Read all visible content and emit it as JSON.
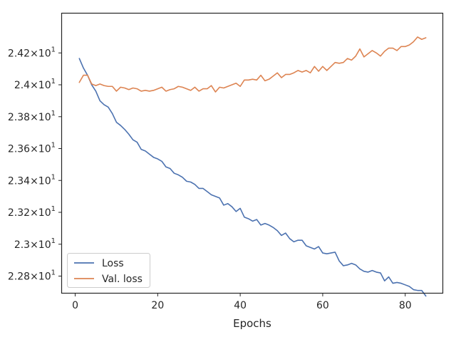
{
  "chart_data": {
    "type": "line",
    "title": "",
    "xlabel": "Epochs",
    "ylabel": "",
    "xlim": [
      -3.2,
      89.2
    ],
    "ylim": [
      22.695,
      24.447
    ],
    "grid": false,
    "legend_position": "bottom-left",
    "x_ticks": [
      0,
      20,
      40,
      60,
      80
    ],
    "x_tick_labels": [
      "0",
      "20",
      "40",
      "60",
      "80"
    ],
    "y_ticks": [
      22.8,
      23.0,
      23.2,
      23.4,
      23.6,
      23.8,
      24.0,
      24.2
    ],
    "y_tick_labels": [
      {
        "mantissa": "2.28",
        "exp": "1"
      },
      {
        "mantissa": "2.3",
        "exp": "1"
      },
      {
        "mantissa": "2.32",
        "exp": "1"
      },
      {
        "mantissa": "2.34",
        "exp": "1"
      },
      {
        "mantissa": "2.36",
        "exp": "1"
      },
      {
        "mantissa": "2.38",
        "exp": "1"
      },
      {
        "mantissa": "2.4",
        "exp": "1"
      },
      {
        "mantissa": "2.42",
        "exp": "1"
      }
    ],
    "series": [
      {
        "name": "Loss",
        "color": "#4c72b0",
        "x": [
          1,
          2,
          3,
          4,
          5,
          6,
          7,
          8,
          9,
          10,
          11,
          12,
          13,
          14,
          15,
          16,
          17,
          18,
          19,
          20,
          21,
          22,
          23,
          24,
          25,
          26,
          27,
          28,
          29,
          30,
          31,
          32,
          33,
          34,
          35,
          36,
          37,
          38,
          39,
          40,
          41,
          42,
          43,
          44,
          45,
          46,
          47,
          48,
          49,
          50,
          51,
          52,
          53,
          54,
          55,
          56,
          57,
          58,
          59,
          60,
          61,
          62,
          63,
          64,
          65,
          66,
          67,
          68,
          69,
          70,
          71,
          72,
          73,
          74,
          75,
          76,
          77,
          78,
          79,
          80,
          81,
          82,
          83,
          84,
          85
        ],
        "values": [
          24.165,
          24.105,
          24.06,
          24.0,
          23.96,
          23.9,
          23.875,
          23.86,
          23.82,
          23.765,
          23.745,
          23.72,
          23.69,
          23.655,
          23.64,
          23.595,
          23.585,
          23.565,
          23.545,
          23.535,
          23.52,
          23.485,
          23.475,
          23.445,
          23.435,
          23.42,
          23.395,
          23.39,
          23.375,
          23.35,
          23.35,
          23.33,
          23.31,
          23.3,
          23.29,
          23.245,
          23.255,
          23.235,
          23.205,
          23.225,
          23.17,
          23.16,
          23.145,
          23.155,
          23.12,
          23.13,
          23.12,
          23.105,
          23.085,
          23.055,
          23.07,
          23.035,
          23.015,
          23.025,
          23.025,
          22.99,
          22.98,
          22.97,
          22.985,
          22.945,
          22.94,
          22.945,
          22.95,
          22.895,
          22.865,
          22.87,
          22.88,
          22.87,
          22.845,
          22.83,
          22.825,
          22.835,
          22.825,
          22.82,
          22.77,
          22.795,
          22.755,
          22.76,
          22.755,
          22.745,
          22.735,
          22.715,
          22.71,
          22.71,
          22.675
        ]
      },
      {
        "name": "Val. loss",
        "color": "#dd8452",
        "x": [
          1,
          2,
          3,
          4,
          5,
          6,
          7,
          8,
          9,
          10,
          11,
          12,
          13,
          14,
          15,
          16,
          17,
          18,
          19,
          20,
          21,
          22,
          23,
          24,
          25,
          26,
          27,
          28,
          29,
          30,
          31,
          32,
          33,
          34,
          35,
          36,
          37,
          38,
          39,
          40,
          41,
          42,
          43,
          44,
          45,
          46,
          47,
          48,
          49,
          50,
          51,
          52,
          53,
          54,
          55,
          56,
          57,
          58,
          59,
          60,
          61,
          62,
          63,
          64,
          65,
          66,
          67,
          68,
          69,
          70,
          71,
          72,
          73,
          74,
          75,
          76,
          77,
          78,
          79,
          80,
          81,
          82,
          83,
          84,
          85
        ],
        "values": [
          24.015,
          24.06,
          24.06,
          24.005,
          23.995,
          24.005,
          23.995,
          23.99,
          23.99,
          23.96,
          23.985,
          23.98,
          23.97,
          23.98,
          23.975,
          23.96,
          23.965,
          23.96,
          23.965,
          23.975,
          23.985,
          23.96,
          23.97,
          23.975,
          23.99,
          23.985,
          23.975,
          23.965,
          23.985,
          23.96,
          23.975,
          23.975,
          23.995,
          23.955,
          23.985,
          23.98,
          23.99,
          24.0,
          24.01,
          23.99,
          24.03,
          24.03,
          24.035,
          24.03,
          24.06,
          24.025,
          24.035,
          24.055,
          24.075,
          24.045,
          24.065,
          24.065,
          24.075,
          24.09,
          24.08,
          24.09,
          24.075,
          24.115,
          24.085,
          24.115,
          24.09,
          24.115,
          24.14,
          24.135,
          24.14,
          24.165,
          24.155,
          24.18,
          24.225,
          24.175,
          24.195,
          24.215,
          24.2,
          24.18,
          24.21,
          24.23,
          24.23,
          24.215,
          24.24,
          24.24,
          24.25,
          24.27,
          24.3,
          24.285,
          24.295
        ]
      }
    ]
  }
}
